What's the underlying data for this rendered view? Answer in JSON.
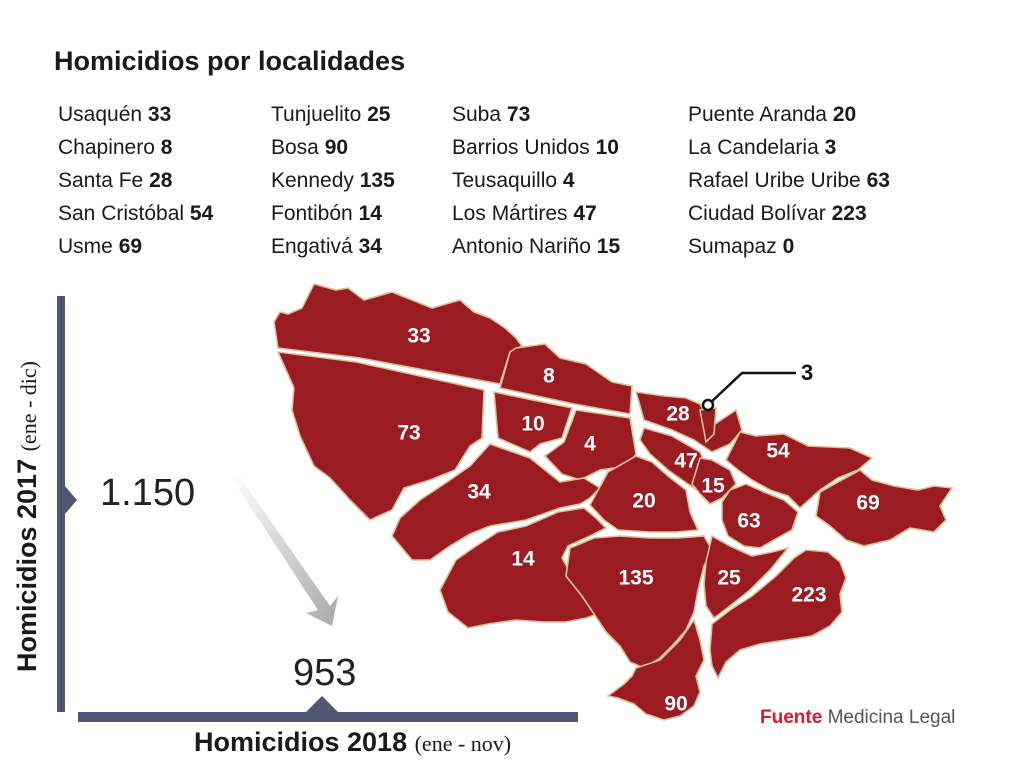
{
  "title": "Homicidios por localidades",
  "columns": [
    [
      {
        "name": "Usaquén",
        "value": "33"
      },
      {
        "name": "Chapinero",
        "value": "8"
      },
      {
        "name": "Santa Fe",
        "value": "28"
      },
      {
        "name": "San Cristóbal",
        "value": "54"
      },
      {
        "name": "Usme",
        "value": "69"
      }
    ],
    [
      {
        "name": "Tunjuelito",
        "value": "25"
      },
      {
        "name": "Bosa",
        "value": "90"
      },
      {
        "name": "Kennedy",
        "value": "135"
      },
      {
        "name": "Fontibón",
        "value": "14"
      },
      {
        "name": "Engativá",
        "value": "34"
      }
    ],
    [
      {
        "name": "Suba",
        "value": "73"
      },
      {
        "name": "Barrios Unidos",
        "value": "10"
      },
      {
        "name": "Teusaquillo",
        "value": "4"
      },
      {
        "name": "Los Mártires",
        "value": "47"
      },
      {
        "name": "Antonio Nariño",
        "value": "15"
      }
    ],
    [
      {
        "name": "Puente Aranda",
        "value": "20"
      },
      {
        "name": "La Candelaria",
        "value": "3"
      },
      {
        "name": "Rafael Uribe Uribe",
        "value": "63"
      },
      {
        "name": "Ciudad Bolívar",
        "value": "223"
      },
      {
        "name": "Sumapaz",
        "value": "0"
      }
    ]
  ],
  "map_labels": {
    "usaquen": "33",
    "chapinero": "8",
    "suba": "73",
    "barrios_unidos": "10",
    "teusaquillo": "4",
    "santa_fe": "28",
    "la_candelaria": "3",
    "los_martires": "47",
    "san_cristobal": "54",
    "engativa": "34",
    "puente_aranda": "20",
    "antonio_narino": "15",
    "usme": "69",
    "rafael_uribe": "63",
    "fontibon": "14",
    "kennedy": "135",
    "tunjuelito": "25",
    "ciudad_bolivar": "223",
    "bosa": "90"
  },
  "totals": {
    "y2017": "1.150",
    "y2018": "953",
    "y_axis_label": "Homicidios 2017",
    "y_axis_paren": "(ene - dic)",
    "x_axis_label": "Homicidios 2018",
    "x_axis_paren": "(ene - nov)"
  },
  "source": {
    "key": "Fuente",
    "text": "Medicina Legal"
  },
  "colors": {
    "region_fill": "#9b1b23",
    "axis": "#4f5773",
    "source_key": "#e0162b"
  }
}
